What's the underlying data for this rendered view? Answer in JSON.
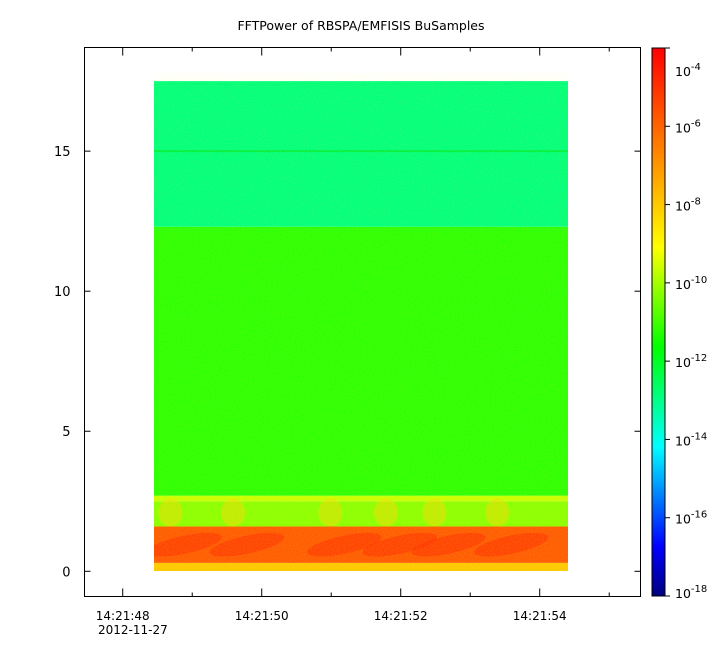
{
  "chart_data": {
    "type": "heatmap",
    "title": "FFTPower of RBSPA/EMFISIS  BuSamples",
    "xlabel": "",
    "ylabel": "",
    "x_axis": {
      "ticks": [
        {
          "value": 48,
          "label": "14:21:48"
        },
        {
          "value": 50,
          "label": "14:21:50"
        },
        {
          "value": 52,
          "label": "14:21:52"
        },
        {
          "value": 54,
          "label": "14:21:54"
        }
      ],
      "minor_ticks": [
        49,
        51,
        53,
        55
      ],
      "date_label": "2012-11-27",
      "range": [
        47.45,
        55.45
      ],
      "data_range": [
        48.45,
        54.45
      ]
    },
    "y_axis": {
      "ticks": [
        0,
        5,
        10,
        15
      ],
      "range": [
        -0.9,
        18.7
      ],
      "data_range": [
        0,
        17.5
      ]
    },
    "colorbar": {
      "scale": "log",
      "range": [
        1e-18,
        0.0001
      ],
      "tick_exponents": [
        -4,
        -6,
        -8,
        -10,
        -12,
        -14,
        -16,
        -18
      ],
      "tick_base": "10",
      "colormap": [
        "#00007f",
        "#0000ff",
        "#007fff",
        "#00ffff",
        "#00ff7f",
        "#00ff00",
        "#7fff00",
        "#ffff00",
        "#ffbf00",
        "#ff7f00",
        "#ff3f00",
        "#ff0000"
      ]
    },
    "bands": [
      {
        "ymin": 0.0,
        "ymax": 0.3,
        "color": "#ffc800"
      },
      {
        "ymin": 0.3,
        "ymax": 1.6,
        "color": "#ff5a00"
      },
      {
        "ymin": 1.6,
        "ymax": 2.5,
        "color": "#8cff00"
      },
      {
        "ymin": 2.5,
        "ymax": 2.7,
        "color": "#c8ff00"
      },
      {
        "ymin": 2.7,
        "ymax": 12.3,
        "color": "#2cff00"
      },
      {
        "ymin": 12.3,
        "ymax": 17.5,
        "color": "#00ff7a"
      }
    ],
    "line_15": {
      "y": 15,
      "color": "#00f040"
    },
    "bursts_x": [
      48.6,
      49.5,
      50.9,
      51.7,
      52.4,
      53.3
    ]
  }
}
